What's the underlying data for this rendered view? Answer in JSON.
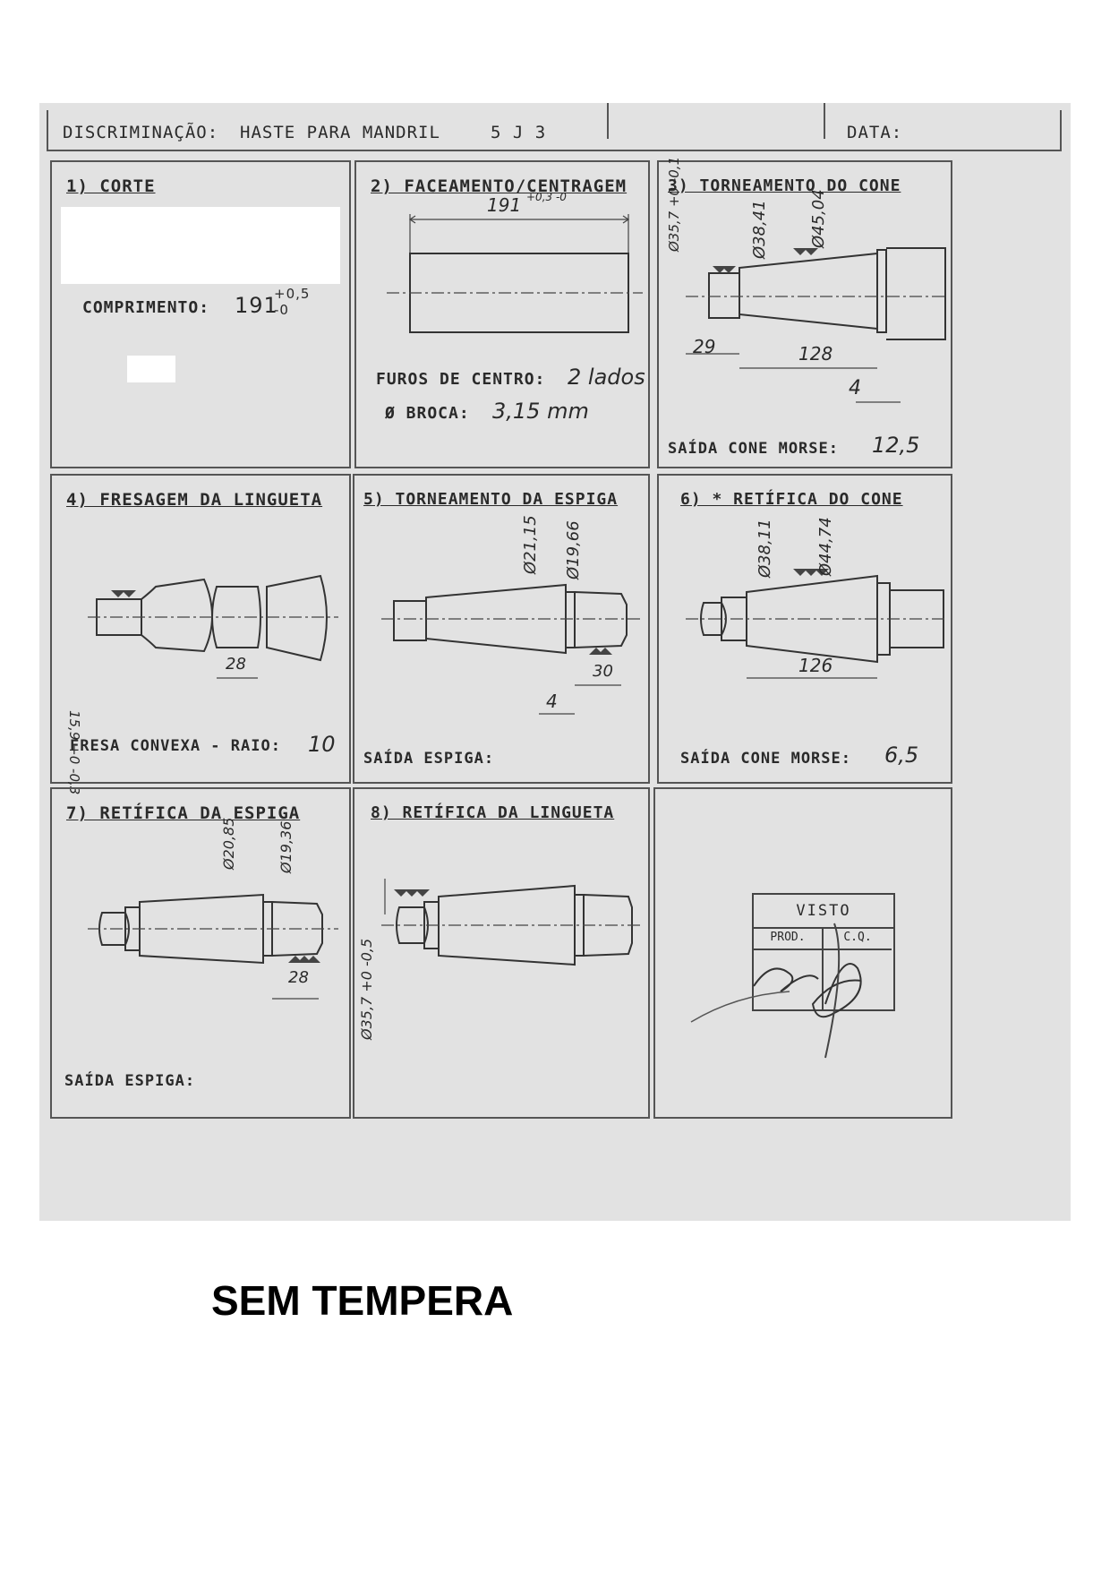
{
  "header": {
    "discriminacao_label": "DISCRIMINAÇÃO:",
    "discriminacao_value": "HASTE PARA MANDRIL",
    "code": "5 J 3",
    "data_label": "DATA:"
  },
  "steps": [
    {
      "title": "1) CORTE",
      "comprimento_label": "COMPRIMENTO:",
      "comprimento_value": "191",
      "tol_upper": "+0,5",
      "tol_lower": "-0"
    },
    {
      "title": "2) FACEAMENTO/CENTRAGEM",
      "dimension": "191",
      "dim_tol": "+0,3 -0",
      "furos_label": "FUROS DE CENTRO:",
      "furos_value": "2 lados",
      "broca_label": "Ø BROCA:",
      "broca_value": "3,15 mm"
    },
    {
      "title": "3) TORNEAMENTO DO CONE",
      "dims": [
        "Ø35,7 +0 -0,1",
        "Ø38,41",
        "Ø45,04",
        "29",
        "128",
        "4"
      ],
      "saida_label": "SAÍDA CONE MORSE:",
      "saida_value": "12,5"
    },
    {
      "title": "4) FRESAGEM DA LINGUETA",
      "dims": [
        "15,9 +0 -0,3",
        "28"
      ],
      "fresa_label": "FRESA CONVEXA - RAIO:",
      "fresa_value": "10"
    },
    {
      "title": "5) TORNEAMENTO DA ESPIGA",
      "dims": [
        "Ø21,15",
        "Ø19,66",
        "30",
        "4"
      ],
      "saida_label": "SAÍDA ESPIGA:"
    },
    {
      "title": "6) * RETÍFICA DO CONE",
      "dims": [
        "Ø38,11",
        "Ø44,74",
        "126"
      ],
      "saida_label": "SAÍDA CONE MORSE:",
      "saida_value": "6,5"
    },
    {
      "title": "7) RETÍFICA DA ESPIGA",
      "dims": [
        "Ø20,85",
        "Ø19,36",
        "28"
      ],
      "saida_label": "SAÍDA ESPIGA:"
    },
    {
      "title": "8) RETÍFICA DA LINGUETA",
      "dims": [
        "Ø35,7 +0 -0,5"
      ]
    }
  ],
  "stamp": {
    "visto": "VISTO",
    "prod": "PROD.",
    "cq": "C.Q."
  },
  "footer": "SEM TEMPERA"
}
